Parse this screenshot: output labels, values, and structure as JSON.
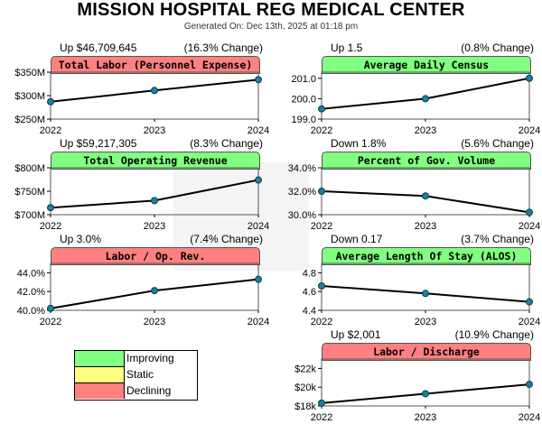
{
  "header": {
    "title": "MISSION HOSPITAL REG MEDICAL CENTER",
    "generated": "Generated On: Dec 13th, 2025 at 01:18 pm"
  },
  "colors": {
    "improving": "#80ff80",
    "static": "#ffff80",
    "declining": "#ff8080",
    "line": "#000000",
    "marker": "#1f7fa0"
  },
  "legend": [
    {
      "label": "Improving",
      "color": "#80ff80"
    },
    {
      "label": "Static",
      "color": "#ffff80"
    },
    {
      "label": "Declining",
      "color": "#ff8080"
    }
  ],
  "chart_data": [
    {
      "type": "line",
      "title": "Total Labor (Personnel Expense)",
      "status": "declining",
      "change_left": "Up $46,709,645",
      "change_right": "(16.3% Change)",
      "x": [
        "2022",
        "2023",
        "2024"
      ],
      "values": [
        287,
        311,
        334
      ],
      "ylim": [
        250,
        350
      ],
      "yticks": [
        250,
        300,
        350
      ],
      "yticklabels": [
        "$250M",
        "$300M",
        "$350M"
      ]
    },
    {
      "type": "line",
      "title": "Average Daily Census",
      "status": "improving",
      "change_left": "Up 1.5",
      "change_right": "(0.8% Change)",
      "x": [
        "2022",
        "2023",
        "2024"
      ],
      "values": [
        199.5,
        200.0,
        201.0
      ],
      "ylim": [
        199.0,
        201.3
      ],
      "yticks": [
        199.0,
        200.0,
        201.0
      ],
      "yticklabels": [
        "199.0",
        "200.0",
        "201.0"
      ]
    },
    {
      "type": "line",
      "title": "Total Operating Revenue",
      "status": "improving",
      "change_left": "Up $59,217,305",
      "change_right": "(8.3% Change)",
      "x": [
        "2022",
        "2023",
        "2024"
      ],
      "values": [
        715,
        730,
        774
      ],
      "ylim": [
        700,
        800
      ],
      "yticks": [
        700,
        750,
        800
      ],
      "yticklabels": [
        "$700M",
        "$750M",
        "$800M"
      ]
    },
    {
      "type": "line",
      "title": "Percent of Gov. Volume",
      "status": "improving",
      "change_left": "Down 1.8%",
      "change_right": "(5.6% Change)",
      "x": [
        "2022",
        "2023",
        "2024"
      ],
      "values": [
        32.0,
        31.6,
        30.2
      ],
      "ylim": [
        30.0,
        34.0
      ],
      "yticks": [
        30.0,
        32.0,
        34.0
      ],
      "yticklabels": [
        "30.0%",
        "32.0%",
        "34.0%"
      ]
    },
    {
      "type": "line",
      "title": "Labor / Op. Rev.",
      "status": "declining",
      "change_left": "Up 3.0%",
      "change_right": "(7.4% Change)",
      "x": [
        "2022",
        "2023",
        "2024"
      ],
      "values": [
        40.2,
        42.1,
        43.3
      ],
      "ylim": [
        40.0,
        45.0
      ],
      "yticks": [
        40.0,
        42.0,
        44.0
      ],
      "yticklabels": [
        "40.0%",
        "42.0%",
        "44.0%"
      ]
    },
    {
      "type": "line",
      "title": "Average Length Of Stay (ALOS)",
      "status": "improving",
      "change_left": "Down 0.17",
      "change_right": "(3.7% Change)",
      "x": [
        "2022",
        "2023",
        "2024"
      ],
      "values": [
        4.66,
        4.58,
        4.49
      ],
      "ylim": [
        4.4,
        4.9
      ],
      "yticks": [
        4.4,
        4.6,
        4.8
      ],
      "yticklabels": [
        "4.4",
        "4.6",
        "4.8"
      ]
    },
    {
      "type": "line",
      "title": "Labor / Discharge",
      "status": "declining",
      "change_left": "Up $2,001",
      "change_right": "(10.9% Change)",
      "x": [
        "2022",
        "2023",
        "2024"
      ],
      "values": [
        18.3,
        19.3,
        20.3
      ],
      "ylim": [
        18.0,
        23.0
      ],
      "yticks": [
        18.0,
        20.0,
        22.0
      ],
      "yticklabels": [
        "$18k",
        "$20k",
        "$22k"
      ]
    }
  ]
}
